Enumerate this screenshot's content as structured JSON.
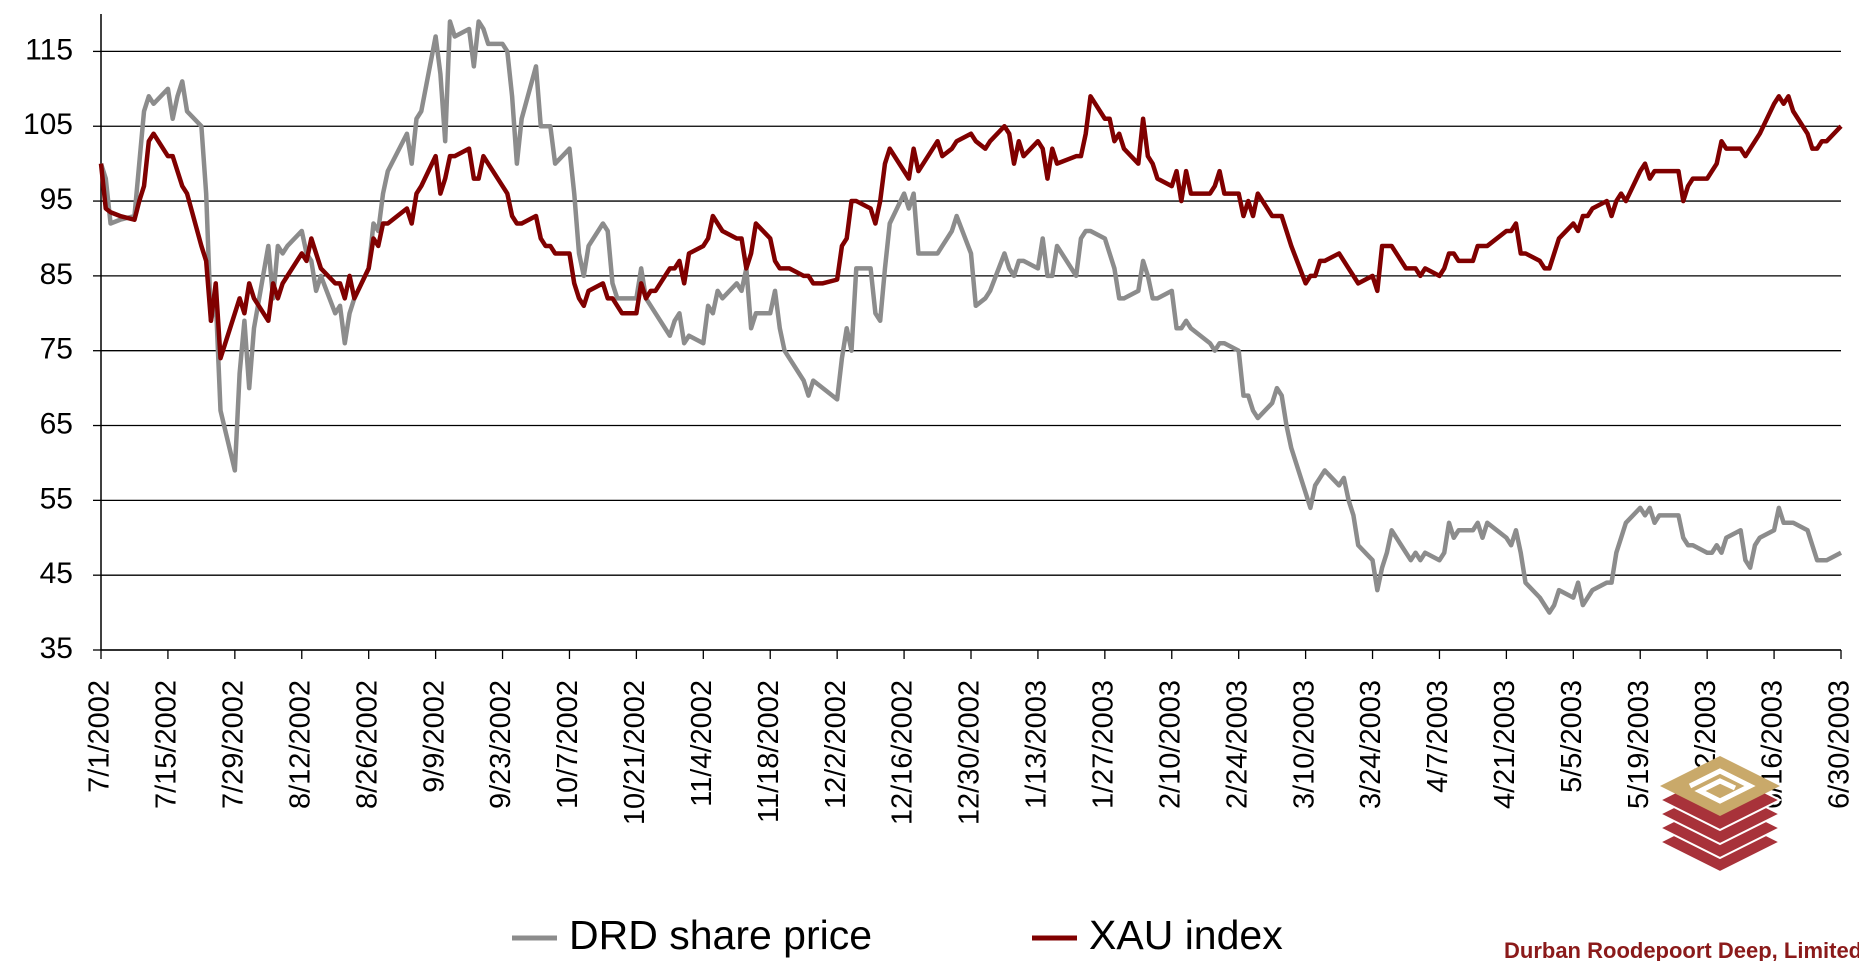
{
  "chart_data": {
    "type": "line",
    "x": [
      "7/1/2002",
      "7/2/2002",
      "7/3/2002",
      "7/5/2002",
      "7/8/2002",
      "7/9/2002",
      "7/10/2002",
      "7/11/2002",
      "7/12/2002",
      "7/15/2002",
      "7/16/2002",
      "7/17/2002",
      "7/18/2002",
      "7/19/2002",
      "7/22/2002",
      "7/23/2002",
      "7/24/2002",
      "7/25/2002",
      "7/26/2002",
      "7/29/2002",
      "7/30/2002",
      "7/31/2002",
      "8/1/2002",
      "8/2/2002",
      "8/5/2002",
      "8/6/2002",
      "8/7/2002",
      "8/8/2002",
      "8/9/2002",
      "8/12/2002",
      "8/13/2002",
      "8/14/2002",
      "8/15/2002",
      "8/16/2002",
      "8/19/2002",
      "8/20/2002",
      "8/21/2002",
      "8/22/2002",
      "8/23/2002",
      "8/26/2002",
      "8/27/2002",
      "8/28/2002",
      "8/29/2002",
      "8/30/2002",
      "9/3/2002",
      "9/4/2002",
      "9/5/2002",
      "9/6/2002",
      "9/9/2002",
      "9/10/2002",
      "9/11/2002",
      "9/12/2002",
      "9/13/2002",
      "9/16/2002",
      "9/17/2002",
      "9/18/2002",
      "9/19/2002",
      "9/20/2002",
      "9/23/2002",
      "9/24/2002",
      "9/25/2002",
      "9/26/2002",
      "9/27/2002",
      "9/30/2002",
      "10/1/2002",
      "10/2/2002",
      "10/3/2002",
      "10/4/2002",
      "10/7/2002",
      "10/8/2002",
      "10/9/2002",
      "10/10/2002",
      "10/11/2002",
      "10/14/2002",
      "10/15/2002",
      "10/16/2002",
      "10/17/2002",
      "10/18/2002",
      "10/21/2002",
      "10/22/2002",
      "10/23/2002",
      "10/24/2002",
      "10/25/2002",
      "10/28/2002",
      "10/29/2002",
      "10/30/2002",
      "10/31/2002",
      "11/1/2002",
      "11/4/2002",
      "11/5/2002",
      "11/6/2002",
      "11/7/2002",
      "11/8/2002",
      "11/11/2002",
      "11/12/2002",
      "11/13/2002",
      "11/14/2002",
      "11/15/2002",
      "11/18/2002",
      "11/19/2002",
      "11/20/2002",
      "11/21/2002",
      "11/22/2002",
      "11/25/2002",
      "11/26/2002",
      "11/27/2002",
      "11/29/2002",
      "12/2/2002",
      "12/3/2002",
      "12/4/2002",
      "12/5/2002",
      "12/6/2002",
      "12/9/2002",
      "12/10/2002",
      "12/11/2002",
      "12/12/2002",
      "12/13/2002",
      "12/16/2002",
      "12/17/2002",
      "12/18/2002",
      "12/19/2002",
      "12/20/2002",
      "12/23/2002",
      "12/24/2002",
      "12/26/2002",
      "12/27/2002",
      "12/30/2002",
      "12/31/2002",
      "1/2/2003",
      "1/3/2003",
      "1/6/2003",
      "1/7/2003",
      "1/8/2003",
      "1/9/2003",
      "1/10/2003",
      "1/13/2003",
      "1/14/2003",
      "1/15/2003",
      "1/16/2003",
      "1/17/2003",
      "1/21/2003",
      "1/22/2003",
      "1/23/2003",
      "1/24/2003",
      "1/27/2003",
      "1/28/2003",
      "1/29/2003",
      "1/30/2003",
      "1/31/2003",
      "2/3/2003",
      "2/4/2003",
      "2/5/2003",
      "2/6/2003",
      "2/7/2003",
      "2/10/2003",
      "2/11/2003",
      "2/12/2003",
      "2/13/2003",
      "2/14/2003",
      "2/18/2003",
      "2/19/2003",
      "2/20/2003",
      "2/21/2003",
      "2/24/2003",
      "2/25/2003",
      "2/26/2003",
      "2/27/2003",
      "2/28/2003",
      "3/3/2003",
      "3/4/2003",
      "3/5/2003",
      "3/6/2003",
      "3/7/2003",
      "3/10/2003",
      "3/11/2003",
      "3/12/2003",
      "3/13/2003",
      "3/14/2003",
      "3/17/2003",
      "3/18/2003",
      "3/19/2003",
      "3/20/2003",
      "3/21/2003",
      "3/24/2003",
      "3/25/2003",
      "3/26/2003",
      "3/27/2003",
      "3/28/2003",
      "3/31/2003",
      "4/1/2003",
      "4/2/2003",
      "4/3/2003",
      "4/4/2003",
      "4/7/2003",
      "4/8/2003",
      "4/9/2003",
      "4/10/2003",
      "4/11/2003",
      "4/14/2003",
      "4/15/2003",
      "4/16/2003",
      "4/17/2003",
      "4/21/2003",
      "4/22/2003",
      "4/23/2003",
      "4/24/2003",
      "4/25/2003",
      "4/28/2003",
      "4/29/2003",
      "4/30/2003",
      "5/1/2003",
      "5/2/2003",
      "5/5/2003",
      "5/6/2003",
      "5/7/2003",
      "5/8/2003",
      "5/9/2003",
      "5/12/2003",
      "5/13/2003",
      "5/14/2003",
      "5/15/2003",
      "5/16/2003",
      "5/19/2003",
      "5/20/2003",
      "5/21/2003",
      "5/22/2003",
      "5/23/2003",
      "5/27/2003",
      "5/28/2003",
      "5/29/2003",
      "5/30/2003",
      "6/2/2003",
      "6/3/2003",
      "6/4/2003",
      "6/5/2003",
      "6/6/2003",
      "6/9/2003",
      "6/10/2003",
      "6/11/2003",
      "6/12/2003",
      "6/13/2003",
      "6/16/2003",
      "6/17/2003",
      "6/18/2003",
      "6/19/2003",
      "6/20/2003",
      "6/23/2003",
      "6/24/2003",
      "6/25/2003",
      "6/26/2003",
      "6/27/2003",
      "6/30/2003"
    ],
    "series": [
      {
        "name": "DRD share price",
        "color": "#8c8c8c",
        "values": [
          100,
          98,
          92,
          92.5,
          93,
          100,
          107,
          109,
          108,
          110,
          106,
          109,
          111,
          107,
          105,
          96,
          79,
          82,
          67,
          59,
          72,
          79,
          70,
          78,
          89,
          82,
          89,
          88,
          89,
          91,
          88,
          87,
          83,
          85,
          80,
          81,
          76,
          80,
          82,
          86,
          92,
          91,
          96,
          99,
          104,
          100,
          106,
          107,
          117,
          112,
          103,
          119,
          117,
          118,
          113,
          119,
          118,
          116,
          116,
          115,
          109,
          100,
          106,
          113,
          105,
          105,
          105,
          100,
          102,
          96,
          88,
          85,
          89,
          92,
          91,
          84,
          82,
          82,
          82,
          86,
          82,
          81,
          80,
          77,
          79,
          80,
          76,
          77,
          76,
          81,
          80,
          83,
          82,
          84,
          83,
          86,
          78,
          80,
          80,
          83,
          78,
          75,
          74,
          71,
          69,
          71,
          70,
          68.5,
          74,
          78,
          75,
          86,
          86,
          80,
          79,
          86,
          92,
          96,
          94,
          96,
          88,
          88,
          88,
          89,
          91,
          93,
          88,
          81,
          82,
          83,
          88,
          86,
          85,
          87,
          87,
          86,
          90,
          85,
          85,
          89,
          85,
          90,
          91,
          91,
          90,
          88,
          86,
          82,
          82,
          83,
          87,
          85,
          82,
          82,
          83,
          78,
          78,
          79,
          78,
          76,
          75,
          76,
          76,
          75,
          69,
          69,
          67,
          66,
          68,
          70,
          69,
          65,
          62,
          56,
          54,
          57,
          58,
          59,
          57,
          58,
          55,
          53,
          49,
          47,
          43,
          46,
          48,
          51,
          48,
          47,
          48,
          47,
          48,
          47,
          48,
          52,
          50,
          51,
          51,
          52,
          50,
          52,
          50,
          49,
          51,
          48,
          44,
          42,
          41,
          40,
          41,
          43,
          42,
          44,
          41,
          42,
          43,
          44,
          44,
          48,
          50,
          52,
          54,
          53,
          54,
          52,
          53,
          53,
          50,
          49,
          49,
          48,
          48,
          49,
          48,
          50,
          51,
          47,
          46,
          49,
          50,
          51,
          54,
          52,
          52,
          52,
          51,
          49,
          47,
          47,
          47,
          48
        ]
      },
      {
        "name": "XAU index",
        "color": "#800000",
        "values": [
          100,
          94,
          93.5,
          93,
          92.5,
          95,
          97,
          103,
          104,
          101,
          101,
          99,
          97,
          96,
          89,
          87,
          79,
          84,
          74,
          80,
          82,
          80,
          84,
          82,
          79,
          84,
          82,
          84,
          85,
          88,
          87,
          90,
          88,
          86,
          84,
          84,
          82,
          85,
          82,
          86,
          90,
          89,
          92,
          92,
          94,
          92,
          96,
          97,
          101,
          96,
          98,
          101,
          101,
          102,
          98,
          98,
          101,
          100,
          97,
          96,
          93,
          92,
          92,
          93,
          90,
          89,
          89,
          88,
          88,
          84,
          82,
          81,
          83,
          84,
          82,
          82,
          81,
          80,
          80,
          84,
          82,
          83,
          83,
          86,
          86,
          87,
          84,
          88,
          89,
          90,
          93,
          92,
          91,
          90,
          90,
          86,
          88,
          92,
          90,
          87,
          86,
          86,
          86,
          85,
          85,
          84,
          84,
          84.5,
          89,
          90,
          95,
          95,
          94,
          92,
          95,
          100,
          102,
          99,
          98,
          102,
          99,
          100,
          103,
          101,
          102,
          103,
          104,
          103,
          102,
          103,
          105,
          104,
          100,
          103,
          101,
          103,
          102,
          98,
          102,
          100,
          101,
          101,
          104,
          109,
          106,
          106,
          103,
          104,
          102,
          100,
          106,
          101,
          100,
          98,
          97,
          99,
          95,
          99,
          96,
          96,
          97,
          99,
          96,
          96,
          93,
          95,
          93,
          96,
          93,
          93,
          93,
          91,
          89,
          84,
          85,
          85,
          87,
          87,
          88,
          87,
          86,
          85,
          84,
          85,
          83,
          89,
          89,
          89,
          86,
          86,
          86,
          85,
          86,
          85,
          86,
          88,
          88,
          87,
          87,
          89,
          89,
          89,
          91,
          91,
          92,
          88,
          88,
          87,
          86,
          86,
          88,
          90,
          92,
          91,
          93,
          93,
          94,
          95,
          93,
          95,
          96,
          95,
          99,
          100,
          98,
          99,
          99,
          99,
          95,
          97,
          98,
          98,
          99,
          100,
          103,
          102,
          102,
          101,
          102,
          103,
          104,
          108,
          109,
          108,
          109,
          107,
          104,
          102,
          102,
          103,
          103,
          105
        ]
      }
    ],
    "xlim": [
      "7/1/2002",
      "6/30/2003"
    ],
    "xticks": [
      "7/1/2002",
      "7/15/2002",
      "7/29/2002",
      "8/12/2002",
      "8/26/2002",
      "9/9/2002",
      "9/23/2002",
      "10/7/2002",
      "10/21/2002",
      "11/4/2002",
      "11/18/2002",
      "12/2/2002",
      "12/16/2002",
      "12/30/2002",
      "1/13/2003",
      "1/27/2003",
      "2/10/2003",
      "2/24/2003",
      "3/10/2003",
      "3/24/2003",
      "4/7/2003",
      "4/21/2003",
      "5/5/2003",
      "5/19/2003",
      "6/2/2003",
      "6/16/2003",
      "6/30/2003"
    ],
    "ylim": [
      35,
      120
    ],
    "yticks": [
      35,
      45,
      55,
      65,
      75,
      85,
      95,
      105,
      115
    ],
    "grid": true,
    "legend": "bottom",
    "logo_text": "Durban Roodepoort Deep, Limited"
  }
}
